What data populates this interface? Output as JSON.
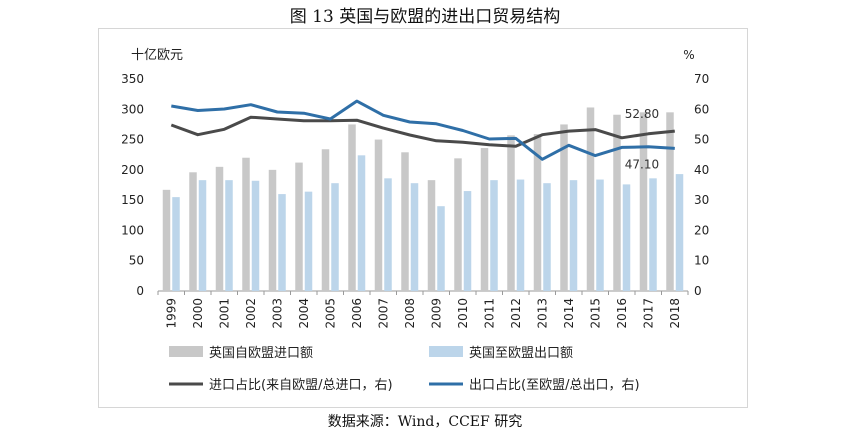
{
  "figure": {
    "title": "图 13 英国与欧盟的进出口贸易结构",
    "source": "数据来源：Wind，CCEF 研究"
  },
  "chart_data": {
    "type": "bar",
    "title": "图 13 英国与欧盟的进出口贸易结构",
    "y_left_unit": "十亿欧元",
    "y_right_unit": "%",
    "ylim_left": [
      0,
      350
    ],
    "ylim_right": [
      0,
      70
    ],
    "yticks_left": [
      "0",
      "50",
      "100",
      "150",
      "200",
      "250",
      "300",
      "350"
    ],
    "yticks_right": [
      "0",
      "10",
      "20",
      "30",
      "40",
      "50",
      "60",
      "70"
    ],
    "grid": false,
    "legend_position": "bottom",
    "categories": [
      "1999",
      "2000",
      "2001",
      "2002",
      "2003",
      "2004",
      "2005",
      "2006",
      "2007",
      "2008",
      "2009",
      "2010",
      "2011",
      "2012",
      "2013",
      "2014",
      "2015",
      "2016",
      "2017",
      "2018"
    ],
    "series": [
      {
        "name": "英国自欧盟进口额",
        "type": "bar",
        "axis": "left",
        "color": "#c8c8c8",
        "values": [
          167,
          196,
          205,
          220,
          200,
          212,
          234,
          275,
          250,
          229,
          183,
          219,
          236,
          257,
          259,
          275,
          303,
          291,
          295,
          295
        ]
      },
      {
        "name": "英国至欧盟出口额",
        "type": "bar",
        "axis": "left",
        "color": "#bcd5ea",
        "values": [
          155,
          183,
          183,
          182,
          160,
          164,
          178,
          224,
          186,
          178,
          140,
          165,
          183,
          184,
          178,
          183,
          184,
          176,
          186,
          193
        ]
      },
      {
        "name": "进口占比(来自欧盟/总进口，右)",
        "type": "line",
        "axis": "right",
        "color": "#4a4a4a",
        "values": [
          54.8,
          51.6,
          53.4,
          57.4,
          56.8,
          56.2,
          56.2,
          56.4,
          53.8,
          51.5,
          49.6,
          49.1,
          48.3,
          47.8,
          51.6,
          52.8,
          53.3,
          50.6,
          51.9,
          52.8
        ],
        "end_label": "52.80"
      },
      {
        "name": "出口占比(至欧盟/总出口，右)",
        "type": "line",
        "axis": "right",
        "color": "#2f6fa7",
        "values": [
          61.1,
          59.6,
          60.1,
          61.5,
          59.1,
          58.7,
          56.8,
          62.7,
          58.0,
          55.8,
          55.2,
          53.0,
          50.2,
          50.4,
          43.5,
          48.1,
          44.7,
          47.4,
          47.6,
          47.1
        ],
        "end_label": "47.10"
      }
    ]
  }
}
